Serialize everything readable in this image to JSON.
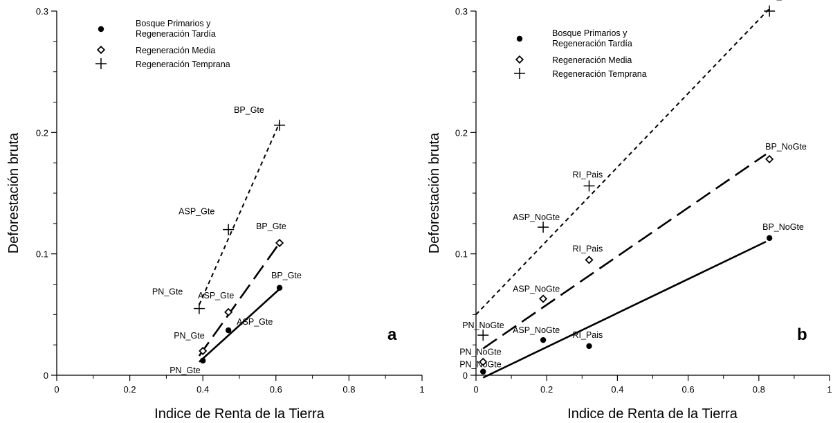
{
  "chart_data": [
    {
      "type": "scatter",
      "panel_label": "a",
      "xlabel": "Indice de Renta de la Tierra",
      "ylabel": "Deforestación bruta",
      "xlim": [
        0,
        1
      ],
      "ylim": [
        0,
        0.3
      ],
      "xticks": [
        0,
        0.2,
        0.4,
        0.6,
        0.8,
        1
      ],
      "xtick_labels": [
        "0",
        "0.2",
        "0.4",
        "0.6",
        "0.8",
        "1"
      ],
      "yticks": [
        0,
        0.1,
        0.2,
        0.3
      ],
      "ytick_labels": [
        "0",
        "0.1",
        "0.2",
        "0.3"
      ],
      "legend_position": "top-left",
      "legend": [
        {
          "marker": "dot",
          "lines": [
            "Bosque Primarios y",
            "Regeneración Tardía"
          ]
        },
        {
          "marker": "diamond",
          "lines": [
            "Regeneración Media"
          ]
        },
        {
          "marker": "plus",
          "lines": [
            "Regeneración Temprana"
          ]
        }
      ],
      "series": [
        {
          "marker": "dot",
          "line_style": "solid",
          "points": [
            {
              "x": 0.4,
              "y": 0.012,
              "label": "PN_Gte"
            },
            {
              "x": 0.47,
              "y": 0.037,
              "label": "ASP_Gte"
            },
            {
              "x": 0.61,
              "y": 0.072,
              "label": "BP_Gte"
            }
          ],
          "fit": [
            [
              0.39,
              0.011
            ],
            [
              0.61,
              0.071
            ]
          ]
        },
        {
          "marker": "diamond",
          "line_style": "dashed",
          "points": [
            {
              "x": 0.4,
              "y": 0.02,
              "label": "PN_Gte"
            },
            {
              "x": 0.47,
              "y": 0.052,
              "label": "ASP_Gte"
            },
            {
              "x": 0.61,
              "y": 0.109,
              "label": "BP_Gte"
            }
          ],
          "fit": [
            [
              0.39,
              0.016
            ],
            [
              0.61,
              0.109
            ]
          ]
        },
        {
          "marker": "plus",
          "line_style": "short-dashed",
          "points": [
            {
              "x": 0.39,
              "y": 0.055,
              "label": "PN_Gte"
            },
            {
              "x": 0.47,
              "y": 0.12,
              "label": "ASP_Gte"
            },
            {
              "x": 0.61,
              "y": 0.206,
              "label": "BP_Gte"
            }
          ],
          "fit": [
            [
              0.39,
              0.058
            ],
            [
              0.61,
              0.208
            ]
          ]
        }
      ]
    },
    {
      "type": "scatter",
      "panel_label": "b",
      "xlabel": "Indice de Renta de la Tierra",
      "ylabel": "Deforestación bruta",
      "xlim": [
        0,
        1
      ],
      "ylim": [
        0,
        0.3
      ],
      "xticks": [
        0,
        0.2,
        0.4,
        0.6,
        0.8,
        1
      ],
      "xtick_labels": [
        "0",
        "0.2",
        "0.4",
        "0.6",
        "0.8",
        "1"
      ],
      "yticks": [
        0,
        0.1,
        0.2,
        0.3
      ],
      "ytick_labels": [
        "0",
        "0.1",
        "0.2",
        "0.3"
      ],
      "legend_position": "top-left",
      "legend": [
        {
          "marker": "dot",
          "lines": [
            "Bosque Primarios y",
            "Regeneración Tardía"
          ]
        },
        {
          "marker": "diamond",
          "lines": [
            "Regeneración Media"
          ]
        },
        {
          "marker": "plus",
          "lines": [
            "Regeneración Temprana"
          ]
        }
      ],
      "series": [
        {
          "marker": "dot",
          "line_style": "solid",
          "points": [
            {
              "x": 0.02,
              "y": 0.003,
              "label": "PN_NoGte"
            },
            {
              "x": 0.19,
              "y": 0.029,
              "label": "ASP_NoGte"
            },
            {
              "x": 0.32,
              "y": 0.024,
              "label": "RI_Pais"
            },
            {
              "x": 0.83,
              "y": 0.113,
              "label": "BP_NoGte"
            }
          ],
          "fit": [
            [
              0.02,
              -0.002
            ],
            [
              0.82,
              0.11
            ]
          ]
        },
        {
          "marker": "diamond",
          "line_style": "dashed",
          "points": [
            {
              "x": 0.02,
              "y": 0.011,
              "label": "PN_NoGte"
            },
            {
              "x": 0.19,
              "y": 0.063,
              "label": "ASP_NoGte"
            },
            {
              "x": 0.32,
              "y": 0.095,
              "label": "RI_Pais"
            },
            {
              "x": 0.83,
              "y": 0.178,
              "label": "BP_NoGte"
            }
          ],
          "fit": [
            [
              0.02,
              0.022
            ],
            [
              0.82,
              0.182
            ]
          ]
        },
        {
          "marker": "plus",
          "line_style": "short-dashed",
          "points": [
            {
              "x": 0.02,
              "y": 0.033,
              "label": "PN_NoGte"
            },
            {
              "x": 0.19,
              "y": 0.122,
              "label": "ASP_NoGte"
            },
            {
              "x": 0.32,
              "y": 0.156,
              "label": "RI_Pais"
            },
            {
              "x": 0.83,
              "y": 0.3,
              "label": "BP_NoGte"
            }
          ],
          "fit": [
            [
              0.0,
              0.05
            ],
            [
              0.83,
              0.302
            ]
          ]
        }
      ]
    }
  ]
}
